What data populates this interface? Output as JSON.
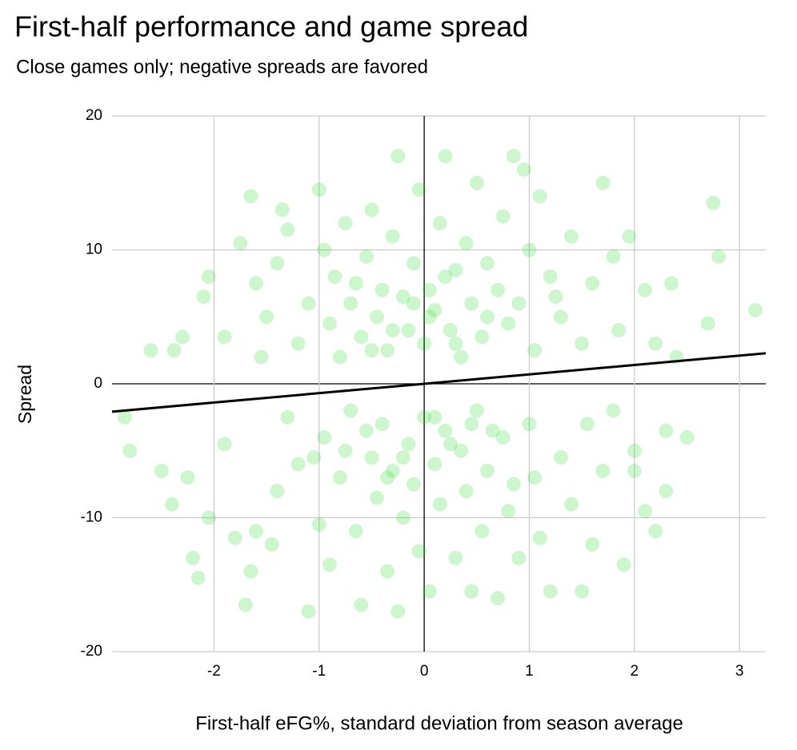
{
  "chart_data": {
    "type": "scatter",
    "title": "First-half performance and game spread",
    "subtitle": "Close games only; negative spreads are favored",
    "xlabel": "First-half eFG%, standard deviation from season average",
    "ylabel": "Spread",
    "color": "#22d822",
    "x": [
      -2.6,
      -2.38,
      -2.05,
      -2.1,
      -1.9,
      -1.75,
      -1.65,
      -1.6,
      -1.5,
      -1.4,
      -1.3,
      -1.2,
      -1.1,
      -1.0,
      -0.95,
      -0.9,
      -0.85,
      -0.8,
      -0.75,
      -0.7,
      -0.6,
      -0.55,
      -0.5,
      -0.45,
      -0.4,
      -0.35,
      -0.3,
      -0.25,
      -0.2,
      -0.15,
      -0.1,
      -0.05,
      0,
      0.05,
      0.1,
      0.15,
      0.2,
      0.25,
      0.3,
      0.35,
      0.4,
      0.45,
      0.5,
      0.55,
      0.6,
      0.7,
      0.75,
      0.8,
      0.85,
      0.9,
      1.0,
      1.05,
      1.1,
      1.2,
      1.3,
      1.4,
      1.5,
      1.6,
      1.7,
      1.8,
      1.85,
      1.95,
      2.1,
      2.2,
      2.35,
      2.75,
      2.8,
      3.15,
      2.7,
      2.4,
      -0.65,
      0.05,
      -0.3,
      0.3,
      -0.1,
      0.6,
      -0.5,
      0.2,
      1.25,
      -1.55,
      -2.3,
      0.95,
      -1.35,
      -2.85,
      -2.8,
      -2.5,
      -2.4,
      -2.2,
      -2.15,
      -2.05,
      -1.9,
      -1.7,
      -1.65,
      -1.6,
      -1.45,
      -1.4,
      -1.3,
      -1.2,
      -1.1,
      -1.0,
      -0.95,
      -0.9,
      -0.8,
      -0.7,
      -0.65,
      -0.6,
      -0.5,
      -0.45,
      -0.4,
      -0.35,
      -0.3,
      -0.25,
      -0.2,
      -0.15,
      -0.1,
      -0.05,
      0,
      0.05,
      0.1,
      0.15,
      0.2,
      0.3,
      0.35,
      0.4,
      0.45,
      0.5,
      0.55,
      0.6,
      0.7,
      0.75,
      0.8,
      0.9,
      1.0,
      1.05,
      1.1,
      1.2,
      1.3,
      1.4,
      1.55,
      1.6,
      1.7,
      1.8,
      1.9,
      2.0,
      2.1,
      2.2,
      2.3,
      2.5,
      2.3,
      -0.55,
      0.25,
      -0.2,
      0.45,
      -0.75,
      0.1,
      -0.35,
      0.65,
      1.5,
      -1.8,
      -2.25,
      2.0,
      -1.05,
      0.85
    ],
    "values": [
      2.5,
      2.5,
      8,
      6.5,
      3.5,
      10.5,
      14,
      7.5,
      5,
      9,
      11.5,
      3,
      6,
      14.5,
      10,
      4.5,
      8,
      2,
      12,
      6,
      3.5,
      9.5,
      13,
      5,
      7,
      2.5,
      11,
      17,
      6.5,
      4,
      9,
      14.5,
      3,
      7,
      5.5,
      12,
      17,
      4,
      8.5,
      2,
      10.5,
      6,
      15,
      3.5,
      9,
      7,
      12.5,
      4.5,
      17,
      6,
      10,
      2.5,
      14,
      8,
      5,
      11,
      3,
      7.5,
      15,
      9.5,
      4,
      11,
      7,
      3,
      7.5,
      13.5,
      9.5,
      5.5,
      4.5,
      2,
      7.5,
      5,
      4,
      3,
      6,
      5,
      2.5,
      8,
      6.5,
      2,
      3.5,
      16,
      13,
      -2.5,
      -5,
      -6.5,
      -9,
      -13,
      -14.5,
      -10,
      -4.5,
      -16.5,
      -14,
      -11,
      -12,
      -8,
      -2.5,
      -6,
      -17,
      -10.5,
      -4,
      -13.5,
      -7,
      -2,
      -11,
      -16.5,
      -5.5,
      -8.5,
      -3,
      -14,
      -6.5,
      -17,
      -10,
      -4.5,
      -7.5,
      -12.5,
      -2.5,
      -15.5,
      -6,
      -9,
      -3.5,
      -13,
      -5,
      -8,
      -15.5,
      -2,
      -11,
      -6.5,
      -16,
      -4,
      -9.5,
      -13,
      -3,
      -7,
      -11.5,
      -15.5,
      -5.5,
      -9,
      -3,
      -12,
      -6.5,
      -2,
      -13.5,
      -5,
      -9.5,
      -11,
      -3.5,
      -4,
      -8,
      -3.5,
      -4.5,
      -5.5,
      -3,
      -5,
      -2.5,
      -7,
      -3.5,
      -15.5,
      -11.5,
      -7,
      -6.5,
      -5.5,
      -7.5
    ],
    "trendline": {
      "x": [
        -2.97,
        3.25
      ],
      "y": [
        -2.08,
        2.28
      ],
      "color": "#000000"
    },
    "xlim": [
      -2.97,
      3.25
    ],
    "xticks": [
      -2,
      -1,
      0,
      1,
      2,
      3
    ],
    "ylim": [
      -20,
      20
    ],
    "yticks": [
      -20,
      -10,
      0,
      10,
      20
    ],
    "grid": true
  }
}
